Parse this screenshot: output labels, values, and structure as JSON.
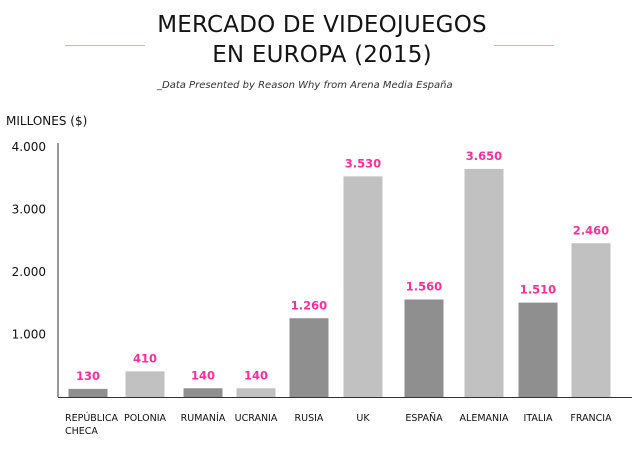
{
  "header": {
    "title_line_1": "MERCADO DE VIDEOJUEGOS",
    "title_line_2": "EN EUROPA (2015)",
    "subtitle": "_Data Presented by Reason Why from Arena Media España"
  },
  "colors": {
    "bar_dark": "#8f8f8f",
    "bar_light": "#c1c1c1",
    "value_label": "#ff2d9b",
    "decoration": "#86d6df",
    "axis": "#333333"
  },
  "chart_data": {
    "type": "bar",
    "ylabel": "MILLONES ($)",
    "xlabel": "",
    "categories": [
      "REPÚBLICA CHECA",
      "POLONIA",
      "RUMANÍA",
      "UCRANIA",
      "RUSIA",
      "UK",
      "ESPAÑA",
      "ALEMANIA",
      "ITALIA",
      "FRANCIA"
    ],
    "category_lines": [
      [
        "REPÚBLICA",
        "CHECA"
      ],
      [
        "POLONIA"
      ],
      [
        "RUMANÍA"
      ],
      [
        "UCRANIA"
      ],
      [
        "RUSIA"
      ],
      [
        "UK"
      ],
      [
        "ESPAÑA"
      ],
      [
        "ALEMANIA"
      ],
      [
        "ITALIA"
      ],
      [
        "FRANCIA"
      ]
    ],
    "values": [
      130,
      410,
      140,
      140,
      1260,
      3530,
      1560,
      3650,
      1510,
      2460
    ],
    "value_labels": [
      "130",
      "410",
      "140",
      "140",
      "1.260",
      "3.530",
      "1.560",
      "3.650",
      "1.510",
      "2.460"
    ],
    "bar_shade": [
      "dark",
      "light",
      "dark",
      "light",
      "dark",
      "light",
      "dark",
      "light",
      "dark",
      "light"
    ],
    "y_ticks": [
      1000,
      2000,
      3000,
      4000
    ],
    "y_tick_labels": [
      "1.000",
      "2.000",
      "3.000",
      "4.000"
    ],
    "grid": false,
    "legend": "none"
  }
}
